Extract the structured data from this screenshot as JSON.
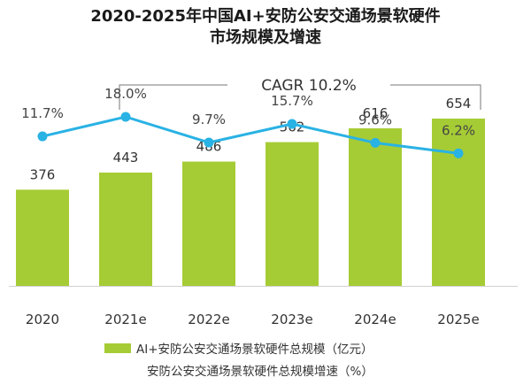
{
  "title": {
    "line1": "2020-2025年中国AI+安防公安交通场景软硬件",
    "line2": "市场规模及增速"
  },
  "cagr_label": "CAGR 10.2%",
  "colors": {
    "bar": "#a6cc35",
    "line": "#29b2e4",
    "bracket": "#777777"
  },
  "chart_data": {
    "type": "bar",
    "categories": [
      "2020",
      "2021e",
      "2022e",
      "2023e",
      "2024e",
      "2025e"
    ],
    "series": [
      {
        "name": "AI+安防公安交通场景软硬件总规模（亿元）",
        "type": "bar",
        "values": [
          376,
          443,
          486,
          562,
          616,
          654
        ]
      },
      {
        "name": "安防公安交通场景软硬件总规模增速（%）",
        "type": "line",
        "values": [
          11.7,
          18.0,
          9.7,
          15.7,
          9.6,
          6.2
        ],
        "labels": [
          "11.7%",
          "18.0%",
          "9.7%",
          "15.7%",
          "9.6%",
          "6.2%"
        ]
      }
    ],
    "grid": false,
    "legend_position": "bottom"
  }
}
